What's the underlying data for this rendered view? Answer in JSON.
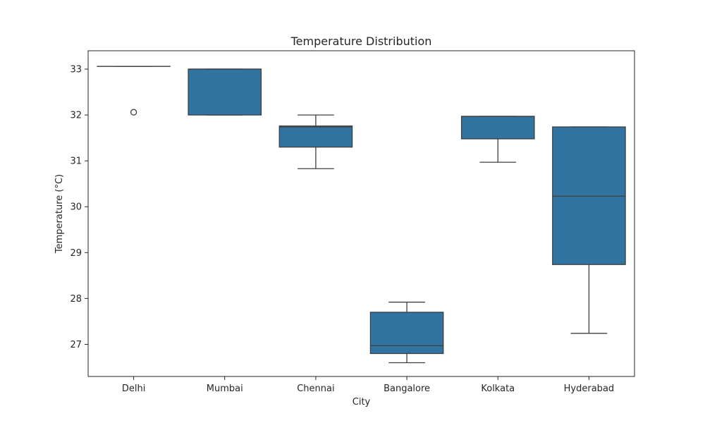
{
  "chart_data": {
    "type": "box",
    "title": "Temperature Distribution",
    "xlabel": "City",
    "ylabel": "Temperature (°C)",
    "ylim": [
      26.3,
      33.4
    ],
    "yticks": [
      27,
      28,
      29,
      30,
      31,
      32,
      33
    ],
    "grid": false,
    "box_color": "#3274a1",
    "line_color": "#3f3f3f",
    "categories": [
      "Delhi",
      "Mumbai",
      "Chennai",
      "Bangalore",
      "Kolkata",
      "Hyderabad"
    ],
    "boxes": [
      {
        "category": "Delhi",
        "whislo": 33.06,
        "q1": 33.06,
        "med": 33.06,
        "q3": 33.06,
        "whishi": 33.06,
        "fliers": [
          32.06
        ]
      },
      {
        "category": "Mumbai",
        "whislo": 32.0,
        "q1": 32.0,
        "med": 33.0,
        "q3": 33.0,
        "whishi": 33.0,
        "fliers": []
      },
      {
        "category": "Chennai",
        "whislo": 30.83,
        "q1": 31.3,
        "med": 31.74,
        "q3": 31.76,
        "whishi": 32.0,
        "fliers": []
      },
      {
        "category": "Bangalore",
        "whislo": 26.6,
        "q1": 26.8,
        "med": 26.97,
        "q3": 27.7,
        "whishi": 27.92,
        "fliers": []
      },
      {
        "category": "Kolkata",
        "whislo": 30.97,
        "q1": 31.48,
        "med": 31.97,
        "q3": 31.97,
        "whishi": 31.97,
        "fliers": []
      },
      {
        "category": "Hyderabad",
        "whislo": 27.24,
        "q1": 28.74,
        "med": 30.23,
        "q3": 31.74,
        "whishi": 31.74,
        "fliers": []
      }
    ]
  }
}
